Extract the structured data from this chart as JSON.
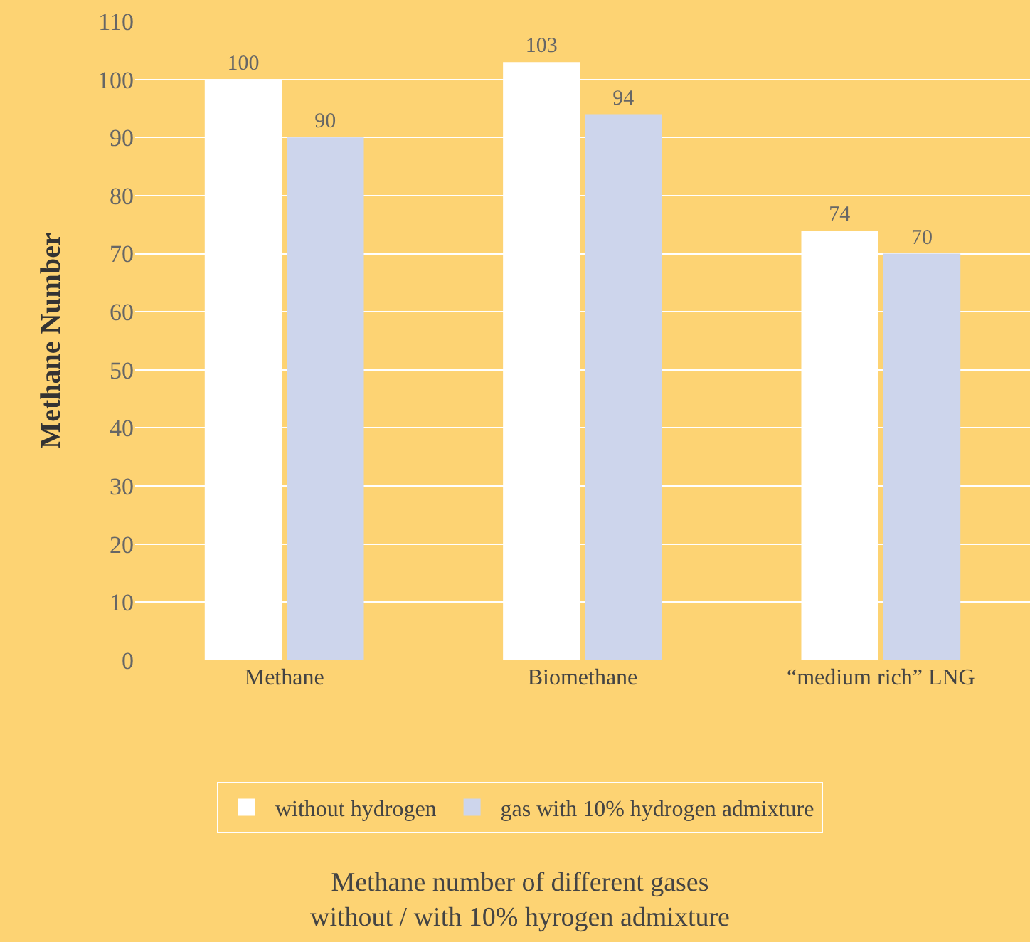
{
  "chart_data": {
    "type": "bar",
    "title": "Methane number of different gases\nwithout / with 10% hyrogen admixture",
    "ylabel": "Methane Number",
    "categories": [
      "Methane",
      "Biomethane",
      "“medium rich” LNG"
    ],
    "series": [
      {
        "name": "without hydrogen",
        "color": "#ffffff",
        "values": [
          100,
          103,
          74
        ]
      },
      {
        "name": "gas with 10% hydrogen admixture",
        "color": "#cdd5ec",
        "values": [
          90,
          94,
          70
        ]
      }
    ],
    "ylim": [
      0,
      110
    ],
    "yticks": [
      0,
      10,
      20,
      30,
      40,
      50,
      60,
      70,
      80,
      90,
      100,
      110
    ],
    "grid": "y",
    "legend": "bottom",
    "data_labels": true
  }
}
